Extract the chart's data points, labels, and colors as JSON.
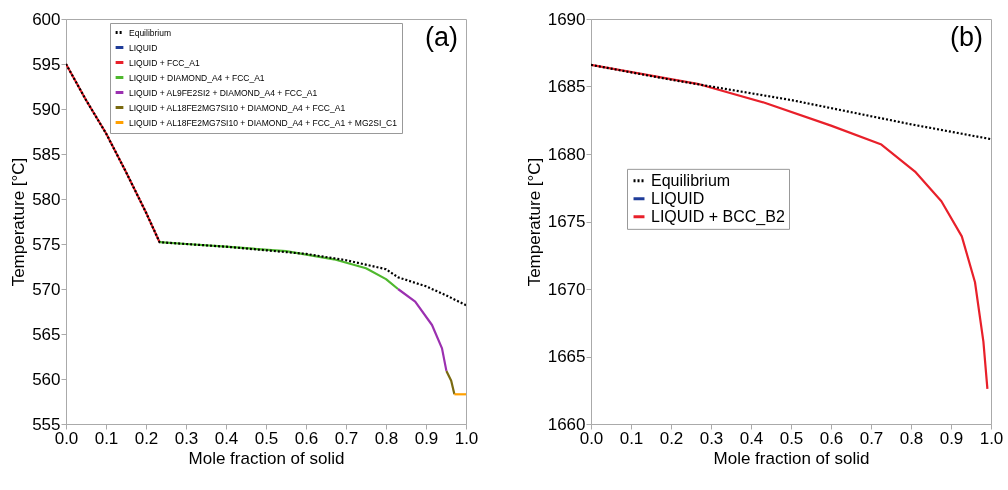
{
  "chart_data": [
    {
      "type": "line",
      "xlabel": "Mole fraction of solid",
      "ylabel": "Temperature [°C]",
      "legend": "top",
      "annotations": [
        "(a)"
      ],
      "xlim": [
        0,
        1
      ],
      "ylim": [
        555,
        600
      ],
      "xticks": [
        {
          "value": 0,
          "label": "0.0"
        },
        {
          "value": 0.1,
          "label": "0.1"
        },
        {
          "value": 0.2,
          "label": "0.2"
        },
        {
          "value": 0.3,
          "label": "0.3"
        },
        {
          "value": 0.4,
          "label": "0.4"
        },
        {
          "value": 0.5,
          "label": "0.5"
        },
        {
          "value": 0.6,
          "label": "0.6"
        },
        {
          "value": 0.7,
          "label": "0.7"
        },
        {
          "value": 0.8,
          "label": "0.8"
        },
        {
          "value": 0.9,
          "label": "0.9"
        },
        {
          "value": 1,
          "label": "1.0"
        }
      ],
      "yticks": [
        555,
        560,
        565,
        570,
        575,
        580,
        585,
        590,
        595,
        600
      ],
      "series": [
        {
          "name": "Equilibrium",
          "color": "#000000",
          "line_style": "dotted",
          "x": [
            0,
            0.05,
            0.1,
            0.15,
            0.2,
            0.234,
            0.3,
            0.4,
            0.5,
            0.6,
            0.7,
            0.8,
            0.83,
            0.9,
            0.95,
            1
          ],
          "values": [
            595,
            591,
            587.3,
            583,
            578.5,
            575.2,
            575,
            574.7,
            574.3,
            573.9,
            573.2,
            572.2,
            571.3,
            570.3,
            569.3,
            568.2
          ]
        },
        {
          "name": "LIQUID",
          "color": "#1f3c99",
          "line_style": "solid"
        },
        {
          "name": "LIQUID + FCC_A1",
          "color": "#e8202a",
          "line_style": "solid",
          "x": [
            0,
            0.05,
            0.1,
            0.15,
            0.2,
            0.234
          ],
          "values": [
            595,
            591,
            587.3,
            583,
            578.5,
            575.2
          ]
        },
        {
          "name": "LIQUID + DIAMOND_A4 + FCC_A1",
          "color": "#4fb82e",
          "line_style": "solid",
          "x": [
            0.234,
            0.3,
            0.4,
            0.55,
            0.67,
            0.75,
            0.8,
            0.83
          ],
          "values": [
            575.2,
            575,
            574.7,
            574.2,
            573.3,
            572.3,
            571.1,
            570
          ]
        },
        {
          "name": "LIQUID + AL9FE2SI2 + DIAMOND_A4 + FCC_A1",
          "color": "#9b30b0",
          "line_style": "solid",
          "x": [
            0.83,
            0.873,
            0.915,
            0.94,
            0.951
          ],
          "values": [
            570,
            568.6,
            566,
            563.4,
            560.9
          ]
        },
        {
          "name": "LIQUID + AL18FE2MG7SI10 + DIAMOND_A4 + FCC_A1",
          "color": "#7a6a10",
          "line_style": "solid",
          "x": [
            0.951,
            0.963,
            0.971
          ],
          "values": [
            560.9,
            559.8,
            558.3
          ]
        },
        {
          "name": "LIQUID + AL18FE2MG7SI10 + DIAMOND_A4 + FCC_A1 + MG2SI_C1",
          "color": "#ffa000",
          "line_style": "solid",
          "x": [
            0.971,
            1
          ],
          "values": [
            558.3,
            558.3
          ]
        }
      ]
    },
    {
      "type": "line",
      "xlabel": "Mole fraction of solid",
      "ylabel": "Temperature [°C]",
      "legend": "left",
      "annotations": [
        "(b)"
      ],
      "xlim": [
        0,
        1
      ],
      "ylim": [
        1660,
        1690
      ],
      "xticks": [
        {
          "value": 0,
          "label": "0.0"
        },
        {
          "value": 0.1,
          "label": "0.1"
        },
        {
          "value": 0.2,
          "label": "0.2"
        },
        {
          "value": 0.3,
          "label": "0.3"
        },
        {
          "value": 0.4,
          "label": "0.4"
        },
        {
          "value": 0.5,
          "label": "0.5"
        },
        {
          "value": 0.6,
          "label": "0.6"
        },
        {
          "value": 0.7,
          "label": "0.7"
        },
        {
          "value": 0.8,
          "label": "0.8"
        },
        {
          "value": 0.9,
          "label": "0.9"
        },
        {
          "value": 1,
          "label": "1.0"
        }
      ],
      "yticks": [
        1660,
        1665,
        1670,
        1675,
        1680,
        1685,
        1690
      ],
      "series": [
        {
          "name": "Equilibrium",
          "color": "#000000",
          "line_style": "dotted",
          "x": [
            0,
            0.2,
            0.4,
            0.5,
            0.6,
            0.8,
            1
          ],
          "values": [
            1686.6,
            1685.5,
            1684.5,
            1684,
            1683.4,
            1682.2,
            1681.1
          ]
        },
        {
          "name": "LIQUID",
          "color": "#1f3c99",
          "line_style": "solid"
        },
        {
          "name": "LIQUID + BCC_B2",
          "color": "#e8202a",
          "line_style": "solid",
          "x": [
            0,
            0.266,
            0.434,
            0.6,
            0.726,
            0.81,
            0.876,
            0.927,
            0.96,
            0.981,
            0.991
          ],
          "values": [
            1686.6,
            1685.2,
            1683.8,
            1682.1,
            1680.7,
            1678.7,
            1676.5,
            1673.9,
            1670.5,
            1666.1,
            1662.6
          ]
        }
      ]
    }
  ]
}
